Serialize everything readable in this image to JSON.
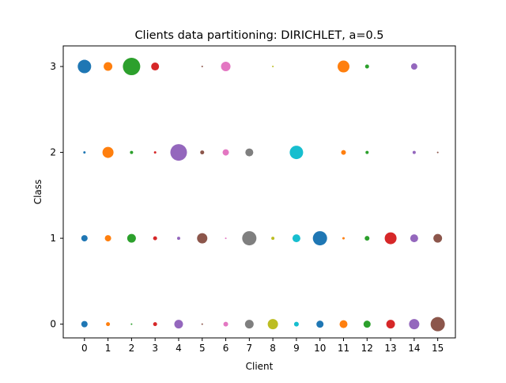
{
  "chart_data": {
    "type": "scatter",
    "title": "Clients data partitioning: DIRICHLET, a=0.5",
    "xlabel": "Client",
    "ylabel": "Class",
    "x_ticks": [
      "0",
      "1",
      "2",
      "3",
      "4",
      "5",
      "6",
      "7",
      "8",
      "9",
      "10",
      "11",
      "12",
      "13",
      "14",
      "15"
    ],
    "y_ticks": [
      "0",
      "1",
      "2",
      "3"
    ],
    "xlim": [
      -0.9,
      15.75
    ],
    "ylim": [
      -0.16,
      3.24
    ],
    "grid": false,
    "legend": "none",
    "client_colors": [
      "#1f77b4",
      "#ff7f0e",
      "#2ca02c",
      "#d62728",
      "#9467bd",
      "#8c564b",
      "#e377c2",
      "#7f7f7f",
      "#bcbd22",
      "#17becf",
      "#1f77b4",
      "#ff7f0e",
      "#2ca02c",
      "#d62728",
      "#9467bd",
      "#8c564b"
    ],
    "bubble_size_by_class": {
      "class_0": [
        4,
        2.5,
        1,
        2.5,
        5.5,
        1,
        3,
        5.5,
        6.5,
        3,
        4.5,
        5,
        4.5,
        5.5,
        6.5,
        9
      ],
      "class_1": [
        4,
        4,
        5.5,
        2.5,
        2,
        6.5,
        1,
        9,
        2,
        5,
        9,
        1.5,
        3,
        7.5,
        5,
        5.5
      ],
      "class_2": [
        1.5,
        7,
        2,
        1.5,
        10.5,
        2.5,
        4,
        5,
        0,
        8.5,
        0,
        3,
        2,
        0,
        2,
        1
      ],
      "class_3": [
        8.5,
        5.5,
        11,
        5,
        0,
        1,
        6,
        0,
        1,
        0,
        0,
        7.5,
        2.5,
        0,
        4,
        0
      ]
    }
  }
}
